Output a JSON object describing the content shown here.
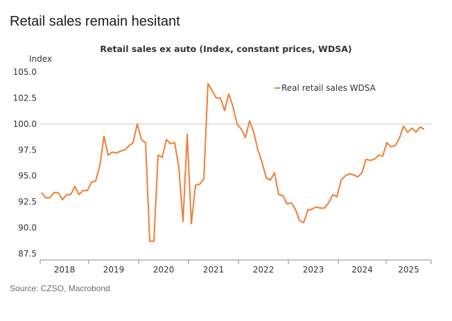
{
  "page": {
    "title": "Retail sales remain hesitant",
    "source": "Source: CZSO, Macrobond"
  },
  "chart_data": {
    "type": "line",
    "title": "Retail sales ex auto (Index, constant prices, WDSA)",
    "ylabel": "Index",
    "xlabel": "",
    "ylim": [
      87.5,
      105.0
    ],
    "yticks": [
      "105.0",
      "102.5",
      "100.0",
      "97.5",
      "95.0",
      "92.5",
      "90.0",
      "87.5"
    ],
    "ytick_values": [
      105.0,
      102.5,
      100.0,
      97.5,
      95.0,
      92.5,
      90.0,
      87.5
    ],
    "xticks": [
      "2018",
      "2019",
      "2020",
      "2021",
      "2022",
      "2023",
      "2024",
      "2025"
    ],
    "reference_line": 100.0,
    "grid": false,
    "legend_position": "top-right",
    "color": "#f07d32",
    "start": "2018-01",
    "frequency": "monthly",
    "series": [
      {
        "name": "Real retail sales WDSA",
        "values": [
          93.4,
          92.9,
          92.9,
          93.4,
          93.4,
          92.7,
          93.2,
          93.2,
          94.0,
          93.2,
          93.6,
          93.6,
          94.4,
          94.5,
          96.0,
          98.8,
          97.0,
          97.3,
          97.2,
          97.4,
          97.5,
          97.9,
          98.2,
          100.0,
          98.5,
          98.2,
          88.7,
          88.7,
          97.0,
          96.8,
          98.5,
          98.1,
          98.2,
          95.8,
          90.6,
          99.0,
          90.4,
          94.1,
          94.2,
          94.7,
          103.9,
          103.2,
          102.5,
          102.5,
          101.3,
          102.9,
          101.7,
          100.0,
          99.5,
          98.7,
          100.3,
          99.2,
          97.5,
          96.3,
          94.8,
          94.6,
          95.3,
          93.2,
          93.1,
          92.3,
          92.4,
          91.8,
          90.7,
          90.5,
          91.7,
          91.8,
          92.0,
          91.9,
          91.9,
          92.4,
          93.2,
          93.0,
          94.6,
          95.0,
          95.2,
          95.1,
          94.9,
          95.3,
          96.6,
          96.5,
          96.6,
          97.0,
          96.9,
          98.2,
          97.8,
          97.9,
          98.6,
          99.8,
          99.2,
          99.6,
          99.2,
          99.7,
          99.5
        ]
      }
    ]
  }
}
